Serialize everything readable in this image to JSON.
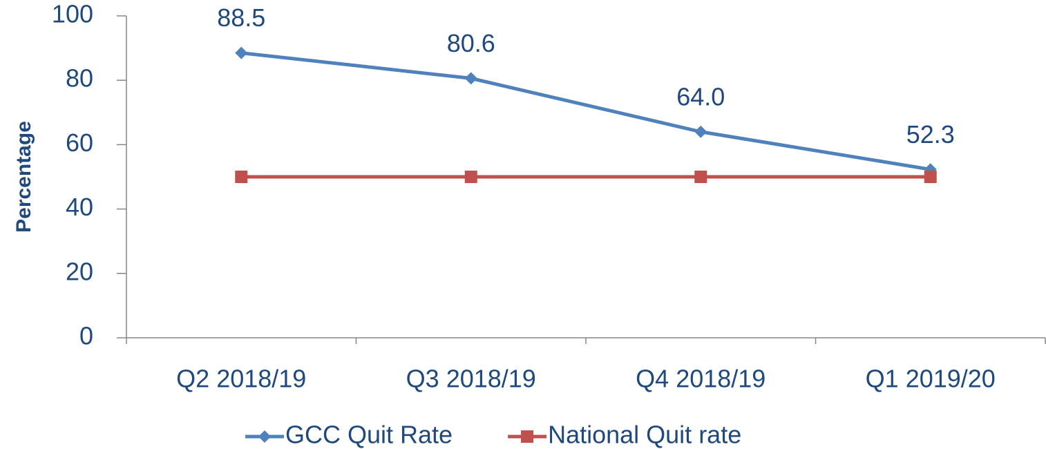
{
  "chart_data": {
    "type": "line",
    "ylabel": "Percentage",
    "categories": [
      "Q2 2018/19",
      "Q3 2018/19",
      "Q4 2018/19",
      "Q1 2019/20"
    ],
    "series": [
      {
        "name": "GCC Quit Rate",
        "color": "#4f81bd",
        "marker": "diamond",
        "values": [
          88.5,
          80.6,
          64.0,
          52.3
        ],
        "value_labels": [
          "88.5",
          "80.6",
          "64.0",
          "52.3"
        ]
      },
      {
        "name": "National Quit rate",
        "color": "#c0504d",
        "marker": "square",
        "values": [
          50,
          50,
          50,
          50
        ]
      }
    ],
    "ylim": [
      0,
      100
    ],
    "yticks": [
      0,
      20,
      40,
      60,
      80,
      100
    ],
    "grid": false,
    "legend": "bottom"
  }
}
